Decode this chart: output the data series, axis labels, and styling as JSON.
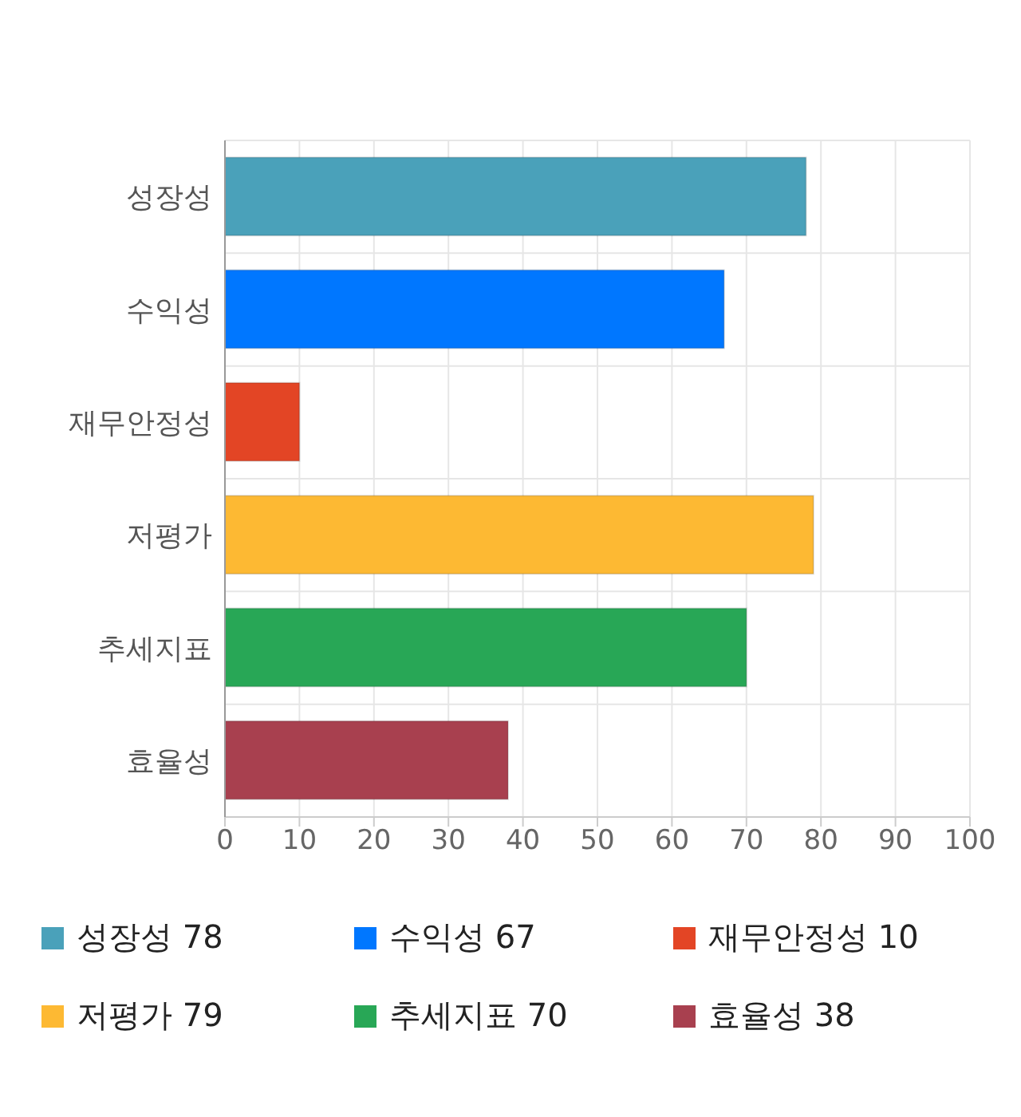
{
  "chart_data": {
    "type": "bar",
    "orientation": "horizontal",
    "stacked": true,
    "categories": [
      "성장성",
      "수익성",
      "재무안정성",
      "저평가",
      "추세지표",
      "효율성"
    ],
    "series": [
      {
        "name": "성장성 78",
        "color": "#4aa1ba",
        "values": [
          78,
          null,
          null,
          null,
          null,
          null
        ]
      },
      {
        "name": "수익성 67",
        "color": "#0077ff",
        "values": [
          null,
          67,
          null,
          null,
          null,
          null
        ]
      },
      {
        "name": "재무안정성 10",
        "color": "#e34525",
        "values": [
          null,
          null,
          10,
          null,
          null,
          null
        ]
      },
      {
        "name": "저평가 79",
        "color": "#fdb933",
        "values": [
          null,
          null,
          null,
          79,
          null,
          null
        ]
      },
      {
        "name": "추세지표 70",
        "color": "#28a756",
        "values": [
          null,
          null,
          null,
          null,
          70,
          null
        ]
      },
      {
        "name": "효율성 38",
        "color": "#a8404f",
        "values": [
          null,
          null,
          null,
          null,
          null,
          38
        ]
      }
    ],
    "xlim": [
      0,
      100
    ],
    "xticks": [
      0,
      10,
      20,
      30,
      40,
      50,
      60,
      70,
      80,
      90,
      100
    ],
    "grid": true,
    "legend": "bottom"
  }
}
